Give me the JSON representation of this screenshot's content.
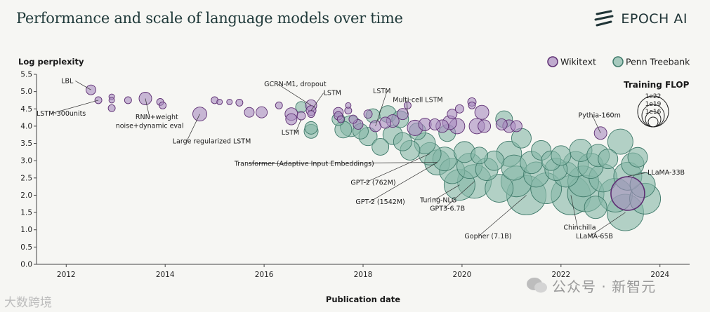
{
  "title": "Performance and scale of language models over time",
  "brand": "EPOCH AI",
  "watermark_left": "大数跨境",
  "watermark_right": "公众号 · 新智元",
  "colors": {
    "wikitext_fill": "#a98cbf",
    "wikitext_stroke": "#5d2e72",
    "ptb_fill": "#86b8a7",
    "ptb_stroke": "#3f7a6a",
    "axis": "#444444",
    "background": "#f6f6f3"
  },
  "chart_data": {
    "type": "scatter",
    "xlabel": "Publication date",
    "ylabel": "Log perplexity",
    "xlim": [
      2011.4,
      2024.6
    ],
    "ylim": [
      0,
      5.5
    ],
    "xticks": [
      2012,
      2014,
      2016,
      2018,
      2020,
      2022,
      2024
    ],
    "yticks": [
      0.0,
      0.5,
      1.0,
      1.5,
      2.0,
      2.5,
      3.0,
      3.5,
      4.0,
      4.5,
      5.0,
      5.5
    ],
    "legend": [
      "Wikitext",
      "Penn Treebank"
    ],
    "legend_position": "top-right",
    "size_legend": {
      "title": "Training FLOP",
      "entries": [
        "1e22",
        "1e19",
        "1e16"
      ]
    },
    "series": [
      {
        "name": "Wikitext",
        "points": [
          [
            2012.5,
            5.05,
            7
          ],
          [
            2012.65,
            4.75,
            5
          ],
          [
            2012.92,
            4.85,
            4
          ],
          [
            2012.92,
            4.75,
            4
          ],
          [
            2012.92,
            4.52,
            5
          ],
          [
            2013.25,
            4.75,
            5
          ],
          [
            2013.6,
            4.8,
            9
          ],
          [
            2013.9,
            4.7,
            5
          ],
          [
            2013.95,
            4.6,
            5
          ],
          [
            2014.7,
            4.35,
            10
          ],
          [
            2015.0,
            4.75,
            5
          ],
          [
            2015.1,
            4.7,
            4
          ],
          [
            2015.3,
            4.7,
            4
          ],
          [
            2015.5,
            4.68,
            5
          ],
          [
            2015.7,
            4.4,
            7
          ],
          [
            2015.95,
            4.4,
            8
          ],
          [
            2016.3,
            4.6,
            5
          ],
          [
            2016.55,
            4.35,
            9
          ],
          [
            2016.55,
            4.2,
            8
          ],
          [
            2016.75,
            4.3,
            6
          ],
          [
            2016.95,
            4.6,
            8
          ],
          [
            2016.95,
            4.45,
            7
          ],
          [
            2016.95,
            4.35,
            5
          ],
          [
            2017.5,
            4.4,
            7
          ],
          [
            2017.5,
            4.3,
            6
          ],
          [
            2017.55,
            4.2,
            5
          ],
          [
            2017.7,
            4.6,
            4
          ],
          [
            2017.7,
            4.45,
            5
          ],
          [
            2017.8,
            4.2,
            6
          ],
          [
            2017.9,
            4.05,
            7
          ],
          [
            2018.1,
            4.35,
            6
          ],
          [
            2018.25,
            4.0,
            8
          ],
          [
            2018.45,
            4.1,
            8
          ],
          [
            2018.6,
            4.15,
            9
          ],
          [
            2018.8,
            4.35,
            8
          ],
          [
            2018.9,
            4.6,
            5
          ],
          [
            2019.05,
            3.95,
            11
          ],
          [
            2019.25,
            4.05,
            9
          ],
          [
            2019.45,
            4.05,
            8
          ],
          [
            2019.6,
            4.0,
            9
          ],
          [
            2019.75,
            4.1,
            10
          ],
          [
            2019.8,
            4.35,
            7
          ],
          [
            2019.9,
            4.0,
            11
          ],
          [
            2019.95,
            4.5,
            6
          ],
          [
            2020.2,
            4.6,
            5
          ],
          [
            2020.2,
            4.7,
            6
          ],
          [
            2020.3,
            4.0,
            11
          ],
          [
            2020.4,
            4.4,
            10
          ],
          [
            2020.45,
            4.0,
            9
          ],
          [
            2020.8,
            4.05,
            8
          ],
          [
            2020.95,
            4.0,
            9
          ],
          [
            2021.1,
            4.0,
            8
          ],
          [
            2022.8,
            3.8,
            9
          ]
        ]
      },
      {
        "name": "Penn Treebank",
        "points": [
          [
            2016.75,
            4.55,
            8
          ],
          [
            2016.95,
            3.95,
            9
          ],
          [
            2016.95,
            3.85,
            10
          ],
          [
            2017.5,
            4.2,
            9
          ],
          [
            2017.6,
            3.9,
            12
          ],
          [
            2017.75,
            4.0,
            15
          ],
          [
            2017.95,
            3.85,
            11
          ],
          [
            2018.1,
            3.7,
            13
          ],
          [
            2018.2,
            4.3,
            10
          ],
          [
            2018.35,
            3.4,
            12
          ],
          [
            2018.5,
            4.35,
            12
          ],
          [
            2018.6,
            3.75,
            14
          ],
          [
            2018.75,
            4.2,
            12
          ],
          [
            2018.8,
            3.55,
            13
          ],
          [
            2018.95,
            3.3,
            14
          ],
          [
            2019.1,
            3.85,
            12
          ],
          [
            2019.25,
            3.5,
            15
          ],
          [
            2019.35,
            3.2,
            16
          ],
          [
            2019.5,
            2.95,
            18
          ],
          [
            2019.65,
            3.05,
            17
          ],
          [
            2019.7,
            3.8,
            12
          ],
          [
            2019.8,
            2.7,
            18
          ],
          [
            2019.95,
            2.3,
            22
          ],
          [
            2020.05,
            3.25,
            15
          ],
          [
            2020.15,
            2.85,
            18
          ],
          [
            2020.25,
            2.4,
            24
          ],
          [
            2020.35,
            3.15,
            12
          ],
          [
            2020.5,
            2.75,
            16
          ],
          [
            2020.65,
            3.0,
            14
          ],
          [
            2020.75,
            2.2,
            20
          ],
          [
            2020.85,
            4.2,
            12
          ],
          [
            2020.95,
            3.2,
            18
          ],
          [
            2021.05,
            2.8,
            18
          ],
          [
            2021.1,
            2.4,
            22
          ],
          [
            2021.2,
            3.65,
            14
          ],
          [
            2021.3,
            2.0,
            28
          ],
          [
            2021.4,
            2.95,
            16
          ],
          [
            2021.5,
            2.6,
            18
          ],
          [
            2021.6,
            3.3,
            14
          ],
          [
            2021.7,
            2.2,
            22
          ],
          [
            2021.8,
            3.0,
            14
          ],
          [
            2021.9,
            2.75,
            16
          ],
          [
            2022.0,
            3.15,
            14
          ],
          [
            2022.1,
            2.6,
            18
          ],
          [
            2022.2,
            2.0,
            28
          ],
          [
            2022.3,
            2.9,
            18
          ],
          [
            2022.4,
            3.3,
            16
          ],
          [
            2022.45,
            2.4,
            22
          ],
          [
            2022.5,
            2.05,
            26
          ],
          [
            2022.6,
            2.85,
            18
          ],
          [
            2022.7,
            1.65,
            16
          ],
          [
            2022.75,
            3.15,
            16
          ],
          [
            2022.85,
            2.5,
            20
          ],
          [
            2022.95,
            3.05,
            14
          ],
          [
            2023.1,
            2.0,
            24
          ],
          [
            2023.2,
            3.55,
            18
          ],
          [
            2023.3,
            1.5,
            26
          ],
          [
            2023.35,
            2.55,
            20
          ],
          [
            2023.45,
            2.9,
            16
          ],
          [
            2023.55,
            3.1,
            14
          ],
          [
            2023.65,
            2.3,
            18
          ],
          [
            2023.7,
            1.9,
            22
          ]
        ]
      }
    ],
    "annotations": [
      {
        "text": "LBL",
        "x": 2012.5,
        "y": 5.05,
        "tx": 2011.9,
        "ty": 5.25
      },
      {
        "text": "LSTM-300units",
        "x": 2012.65,
        "y": 4.75,
        "tx": 2011.4,
        "ty": 4.3
      },
      {
        "text": "RNN+weight",
        "x": 2013.6,
        "y": 4.8,
        "tx": 2013.4,
        "ty": 4.2
      },
      {
        "text": "noise+dynamic eval",
        "x": null,
        "y": null,
        "tx": 2013.0,
        "ty": 3.95
      },
      {
        "text": "Large regularized LSTM",
        "x": 2014.7,
        "y": 4.35,
        "tx": 2014.15,
        "ty": 3.5
      },
      {
        "text": "GCRN-M1, dropout",
        "x": 2016.95,
        "y": 4.6,
        "tx": 2016.0,
        "ty": 5.15
      },
      {
        "text": "LSTM",
        "x": 2016.95,
        "y": 4.45,
        "tx": 2017.2,
        "ty": 4.9
      },
      {
        "text": "LSTM",
        "x": 2016.75,
        "y": 4.2,
        "tx": 2016.35,
        "ty": 3.75
      },
      {
        "text": "LSTM",
        "x": 2018.25,
        "y": 4.0,
        "tx": 2018.2,
        "ty": 4.95
      },
      {
        "text": "Multi-cell LSTM",
        "x": 2018.9,
        "y": 4.35,
        "tx": 2018.6,
        "ty": 4.7
      },
      {
        "text": "Transformer (Adaptive Input Embeddings)",
        "x": 2019.5,
        "y": 2.95,
        "tx": 2015.4,
        "ty": 2.85
      },
      {
        "text": "GPT-2 (762M)",
        "x": 2019.35,
        "y": 3.2,
        "tx": 2017.75,
        "ty": 2.3
      },
      {
        "text": "GPT-2 (1542M)",
        "x": 2019.5,
        "y": 2.95,
        "tx": 2017.85,
        "ty": 1.75
      },
      {
        "text": "Turing-NLG",
        "x": 2019.95,
        "y": 2.3,
        "tx": 2019.15,
        "ty": 1.8
      },
      {
        "text": "GPT3-6.7B",
        "x": 2020.25,
        "y": 2.4,
        "tx": 2019.35,
        "ty": 1.55
      },
      {
        "text": "Pythia-160m",
        "x": 2022.8,
        "y": 3.8,
        "tx": 2022.35,
        "ty": 4.25
      },
      {
        "text": "LLaMA-33B",
        "x": 2023.35,
        "y": 2.55,
        "tx": 2023.75,
        "ty": 2.6
      },
      {
        "text": "Gopher (7.1B)",
        "x": 2021.3,
        "y": 2.0,
        "tx": 2020.05,
        "ty": 0.75
      },
      {
        "text": "Chinchilla",
        "x": 2022.2,
        "y": 2.0,
        "tx": 2022.05,
        "ty": 1.0
      },
      {
        "text": "LLaMA-65B",
        "x": 2023.3,
        "y": 1.5,
        "tx": 2022.3,
        "ty": 0.75
      }
    ]
  }
}
